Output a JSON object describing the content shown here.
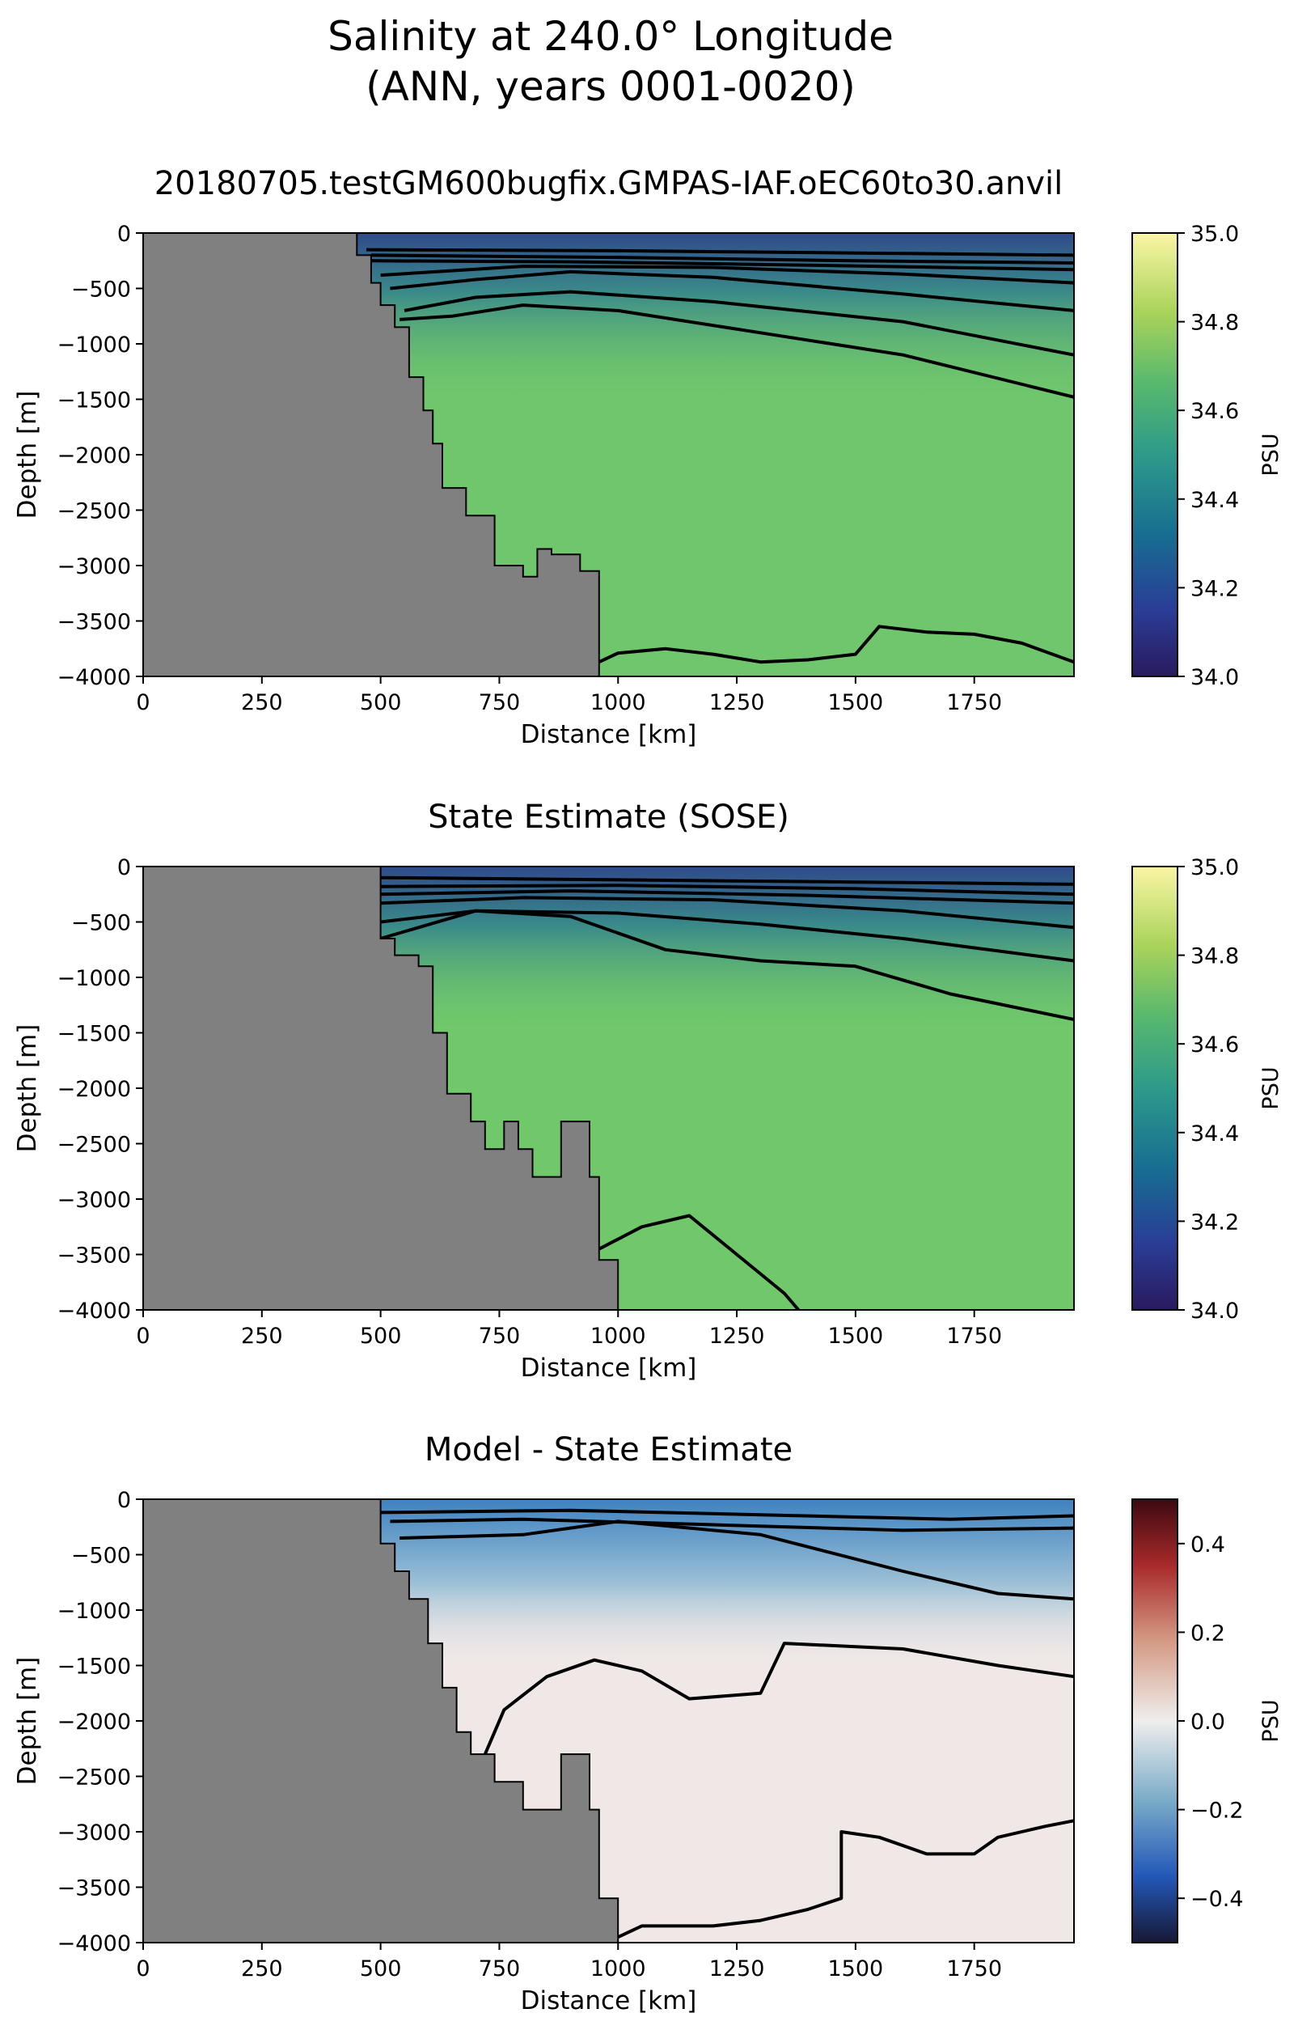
{
  "figure": {
    "title_line1": "Salinity at 240.0° Longitude",
    "title_line2": "(ANN, years 0001-0020)"
  },
  "chart_data": [
    {
      "type": "heatmap",
      "title": "20180705.testGM600bugfix.GMPAS-IAF.oEC60to30.anvil",
      "xlabel": "Distance [km]",
      "ylabel": "Depth [m]",
      "xlim": [
        0,
        1960
      ],
      "ylim": [
        -4000,
        0
      ],
      "x_ticks": [
        "0",
        "250",
        "500",
        "750",
        "1000",
        "1250",
        "1500",
        "1750"
      ],
      "y_ticks": [
        "0",
        "−500",
        "−1000",
        "−1500",
        "−2000",
        "−2500",
        "−3000",
        "−3500",
        "−4000"
      ],
      "colorbar": {
        "label": "PSU",
        "range": [
          34.0,
          35.0
        ],
        "ticks": [
          "35.0",
          "34.8",
          "34.6",
          "34.4",
          "34.2",
          "34.0"
        ],
        "colormap": "haline"
      },
      "field_color": "#6fc66c",
      "land_color": "#808080",
      "bathymetry": [
        [
          0,
          0
        ],
        [
          450,
          0
        ],
        [
          450,
          -200
        ],
        [
          480,
          -200
        ],
        [
          480,
          -450
        ],
        [
          500,
          -450
        ],
        [
          500,
          -650
        ],
        [
          530,
          -650
        ],
        [
          530,
          -850
        ],
        [
          560,
          -850
        ],
        [
          560,
          -1300
        ],
        [
          590,
          -1300
        ],
        [
          590,
          -1600
        ],
        [
          610,
          -1600
        ],
        [
          610,
          -1900
        ],
        [
          630,
          -1900
        ],
        [
          630,
          -2300
        ],
        [
          680,
          -2300
        ],
        [
          680,
          -2550
        ],
        [
          740,
          -2550
        ],
        [
          740,
          -3000
        ],
        [
          800,
          -3000
        ],
        [
          800,
          -3100
        ],
        [
          830,
          -3100
        ],
        [
          830,
          -2850
        ],
        [
          860,
          -2850
        ],
        [
          860,
          -2900
        ],
        [
          920,
          -2900
        ],
        [
          920,
          -3050
        ],
        [
          960,
          -3050
        ],
        [
          960,
          -4000
        ],
        [
          0,
          -4000
        ]
      ],
      "contours": [
        [
          [
            470,
            -150
          ],
          [
            1000,
            -160
          ],
          [
            1500,
            -180
          ],
          [
            1960,
            -200
          ]
        ],
        [
          [
            480,
            -200
          ],
          [
            1000,
            -220
          ],
          [
            1500,
            -250
          ],
          [
            1960,
            -270
          ]
        ],
        [
          [
            480,
            -250
          ],
          [
            900,
            -260
          ],
          [
            1400,
            -290
          ],
          [
            1960,
            -330
          ]
        ],
        [
          [
            500,
            -380
          ],
          [
            800,
            -300
          ],
          [
            1200,
            -310
          ],
          [
            1600,
            -370
          ],
          [
            1960,
            -450
          ]
        ],
        [
          [
            520,
            -500
          ],
          [
            700,
            -420
          ],
          [
            900,
            -350
          ],
          [
            1200,
            -400
          ],
          [
            1600,
            -550
          ],
          [
            1960,
            -700
          ]
        ],
        [
          [
            550,
            -700
          ],
          [
            700,
            -580
          ],
          [
            900,
            -530
          ],
          [
            1200,
            -620
          ],
          [
            1600,
            -800
          ],
          [
            1960,
            -1100
          ]
        ],
        [
          [
            540,
            -780
          ],
          [
            650,
            -750
          ],
          [
            800,
            -650
          ],
          [
            1000,
            -700
          ],
          [
            1300,
            -900
          ],
          [
            1600,
            -1100
          ],
          [
            1960,
            -1480
          ]
        ],
        [
          [
            960,
            -3870
          ],
          [
            1000,
            -3790
          ],
          [
            1100,
            -3750
          ],
          [
            1200,
            -3800
          ],
          [
            1300,
            -3870
          ],
          [
            1400,
            -3850
          ],
          [
            1500,
            -3800
          ],
          [
            1550,
            -3550
          ],
          [
            1650,
            -3600
          ],
          [
            1750,
            -3620
          ],
          [
            1850,
            -3700
          ],
          [
            1960,
            -3870
          ]
        ]
      ]
    },
    {
      "type": "heatmap",
      "title": "State Estimate (SOSE)",
      "xlabel": "Distance [km]",
      "ylabel": "Depth [m]",
      "xlim": [
        0,
        1960
      ],
      "ylim": [
        -4000,
        0
      ],
      "x_ticks": [
        "0",
        "250",
        "500",
        "750",
        "1000",
        "1250",
        "1500",
        "1750"
      ],
      "y_ticks": [
        "0",
        "−500",
        "−1000",
        "−1500",
        "−2000",
        "−2500",
        "−3000",
        "−3500",
        "−4000"
      ],
      "colorbar": {
        "label": "PSU",
        "range": [
          34.0,
          35.0
        ],
        "ticks": [
          "35.0",
          "34.8",
          "34.6",
          "34.4",
          "34.2",
          "34.0"
        ],
        "colormap": "haline"
      },
      "field_color": "#70c86a",
      "land_color": "#808080",
      "bathymetry": [
        [
          0,
          0
        ],
        [
          500,
          0
        ],
        [
          500,
          -650
        ],
        [
          530,
          -650
        ],
        [
          530,
          -800
        ],
        [
          580,
          -800
        ],
        [
          580,
          -900
        ],
        [
          610,
          -900
        ],
        [
          610,
          -1500
        ],
        [
          640,
          -1500
        ],
        [
          640,
          -2050
        ],
        [
          690,
          -2050
        ],
        [
          690,
          -2300
        ],
        [
          720,
          -2300
        ],
        [
          720,
          -2550
        ],
        [
          760,
          -2550
        ],
        [
          760,
          -2300
        ],
        [
          790,
          -2300
        ],
        [
          790,
          -2550
        ],
        [
          820,
          -2550
        ],
        [
          820,
          -2800
        ],
        [
          880,
          -2800
        ],
        [
          880,
          -2300
        ],
        [
          940,
          -2300
        ],
        [
          940,
          -2800
        ],
        [
          960,
          -2800
        ],
        [
          960,
          -3550
        ],
        [
          1000,
          -3550
        ],
        [
          1000,
          -4000
        ],
        [
          0,
          -4000
        ]
      ],
      "contours": [
        [
          [
            500,
            -100
          ],
          [
            1000,
            -120
          ],
          [
            1500,
            -140
          ],
          [
            1960,
            -160
          ]
        ],
        [
          [
            500,
            -180
          ],
          [
            1000,
            -170
          ],
          [
            1500,
            -200
          ],
          [
            1960,
            -250
          ]
        ],
        [
          [
            500,
            -250
          ],
          [
            900,
            -220
          ],
          [
            1400,
            -260
          ],
          [
            1960,
            -330
          ]
        ],
        [
          [
            500,
            -330
          ],
          [
            800,
            -280
          ],
          [
            1200,
            -300
          ],
          [
            1600,
            -400
          ],
          [
            1960,
            -550
          ]
        ],
        [
          [
            500,
            -500
          ],
          [
            700,
            -400
          ],
          [
            1000,
            -420
          ],
          [
            1300,
            -520
          ],
          [
            1600,
            -650
          ],
          [
            1960,
            -850
          ]
        ],
        [
          [
            500,
            -650
          ],
          [
            700,
            -400
          ],
          [
            900,
            -450
          ],
          [
            1100,
            -750
          ],
          [
            1300,
            -850
          ],
          [
            1500,
            -900
          ],
          [
            1700,
            -1150
          ],
          [
            1960,
            -1380
          ]
        ],
        [
          [
            960,
            -3450
          ],
          [
            1050,
            -3250
          ],
          [
            1150,
            -3150
          ],
          [
            1250,
            -3500
          ],
          [
            1350,
            -3850
          ],
          [
            1380,
            -4000
          ]
        ]
      ]
    },
    {
      "type": "heatmap",
      "title": "Model - State Estimate",
      "xlabel": "Distance [km]",
      "ylabel": "Depth [m]",
      "xlim": [
        0,
        1960
      ],
      "ylim": [
        -4000,
        0
      ],
      "x_ticks": [
        "0",
        "250",
        "500",
        "750",
        "1000",
        "1250",
        "1500",
        "1750"
      ],
      "y_ticks": [
        "0",
        "−500",
        "−1000",
        "−1500",
        "−2000",
        "−2500",
        "−3000",
        "−3500",
        "−4000"
      ],
      "colorbar": {
        "label": "PSU",
        "range": [
          -0.5,
          0.5
        ],
        "ticks": [
          "0.4",
          "0.2",
          "0.0",
          "−0.2",
          "−0.4"
        ],
        "colormap": "balance"
      },
      "field_color": "#efe8e6",
      "land_color": "#808080",
      "bathymetry": [
        [
          0,
          0
        ],
        [
          500,
          0
        ],
        [
          500,
          -400
        ],
        [
          530,
          -400
        ],
        [
          530,
          -650
        ],
        [
          560,
          -650
        ],
        [
          560,
          -900
        ],
        [
          600,
          -900
        ],
        [
          600,
          -1300
        ],
        [
          630,
          -1300
        ],
        [
          630,
          -1700
        ],
        [
          660,
          -1700
        ],
        [
          660,
          -2100
        ],
        [
          690,
          -2100
        ],
        [
          690,
          -2300
        ],
        [
          740,
          -2300
        ],
        [
          740,
          -2550
        ],
        [
          800,
          -2550
        ],
        [
          800,
          -2800
        ],
        [
          880,
          -2800
        ],
        [
          880,
          -2300
        ],
        [
          940,
          -2300
        ],
        [
          940,
          -2800
        ],
        [
          960,
          -2800
        ],
        [
          960,
          -3600
        ],
        [
          1000,
          -3600
        ],
        [
          1000,
          -4000
        ],
        [
          0,
          -4000
        ]
      ],
      "contours": [
        [
          [
            500,
            -120
          ],
          [
            900,
            -100
          ],
          [
            1300,
            -140
          ],
          [
            1700,
            -180
          ],
          [
            1960,
            -150
          ]
        ],
        [
          [
            520,
            -200
          ],
          [
            800,
            -180
          ],
          [
            1200,
            -230
          ],
          [
            1600,
            -280
          ],
          [
            1960,
            -260
          ]
        ],
        [
          [
            540,
            -350
          ],
          [
            800,
            -320
          ],
          [
            1000,
            -200
          ],
          [
            1300,
            -320
          ],
          [
            1600,
            -650
          ],
          [
            1800,
            -850
          ],
          [
            1960,
            -900
          ]
        ],
        [
          [
            720,
            -2300
          ],
          [
            760,
            -1900
          ],
          [
            850,
            -1600
          ],
          [
            950,
            -1450
          ],
          [
            1050,
            -1550
          ],
          [
            1150,
            -1800
          ],
          [
            1300,
            -1750
          ],
          [
            1350,
            -1300
          ],
          [
            1600,
            -1350
          ],
          [
            1800,
            -1500
          ],
          [
            1960,
            -1600
          ]
        ],
        [
          [
            1000,
            -3950
          ],
          [
            1050,
            -3850
          ],
          [
            1200,
            -3850
          ],
          [
            1300,
            -3800
          ],
          [
            1400,
            -3700
          ],
          [
            1470,
            -3600
          ],
          [
            1470,
            -3000
          ],
          [
            1550,
            -3050
          ],
          [
            1650,
            -3200
          ],
          [
            1750,
            -3200
          ],
          [
            1800,
            -3050
          ],
          [
            1900,
            -2950
          ],
          [
            1960,
            -2900
          ]
        ]
      ]
    }
  ]
}
